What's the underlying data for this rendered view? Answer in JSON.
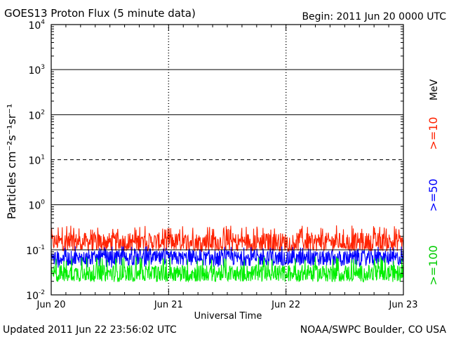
{
  "header": {
    "title": "GOES13 Proton Flux (5 minute data)",
    "begin": "Begin: 2011 Jun 20 0000 UTC"
  },
  "footer": {
    "updated": "Updated 2011 Jun 22 23:56:02 UTC",
    "credit": "NOAA/SWPC Boulder, CO USA"
  },
  "colors": {
    "ge10": "#ff2200",
    "ge50": "#0000ff",
    "ge100": "#00ee00",
    "axis": "#000000",
    "background": "#ffffff"
  },
  "chart_data": {
    "type": "line",
    "title": "GOES13 Proton Flux (5 minute data)",
    "xlabel": "Universal Time",
    "ylabel": "Particles cm⁻²s⁻¹sr⁻¹",
    "yscale": "log",
    "ylim": [
      0.01,
      10000
    ],
    "xlim": [
      "2011-06-20 00:00",
      "2011-06-23 00:00"
    ],
    "x_tick_labels": [
      "Jun 20",
      "Jun 21",
      "Jun 22",
      "Jun 23"
    ],
    "y_tick_labels": [
      {
        "base": "10",
        "exp": "4",
        "value": 10000
      },
      {
        "base": "10",
        "exp": "3",
        "value": 1000
      },
      {
        "base": "10",
        "exp": "2",
        "value": 100
      },
      {
        "base": "10",
        "exp": "1",
        "value": 10
      },
      {
        "base": "10",
        "exp": "0",
        "value": 1
      },
      {
        "base": "10",
        "exp": "-1",
        "value": 0.1
      },
      {
        "base": "10",
        "exp": "-2",
        "value": 0.01
      }
    ],
    "grid": "horizontal lines at each decade (10¹ dashed); vertical dashed day dividers",
    "energy_unit": "MeV",
    "legend_placement": "right, vertical",
    "series": [
      {
        "name": ">=10",
        "color": "#ff2200",
        "typical": 0.15,
        "range": [
          0.09,
          0.35
        ]
      },
      {
        "name": ">=50",
        "color": "#0000ff",
        "typical": 0.065,
        "range": [
          0.04,
          0.12
        ]
      },
      {
        "name": ">=100",
        "color": "#00ee00",
        "typical": 0.03,
        "range": [
          0.02,
          0.07
        ]
      }
    ]
  }
}
